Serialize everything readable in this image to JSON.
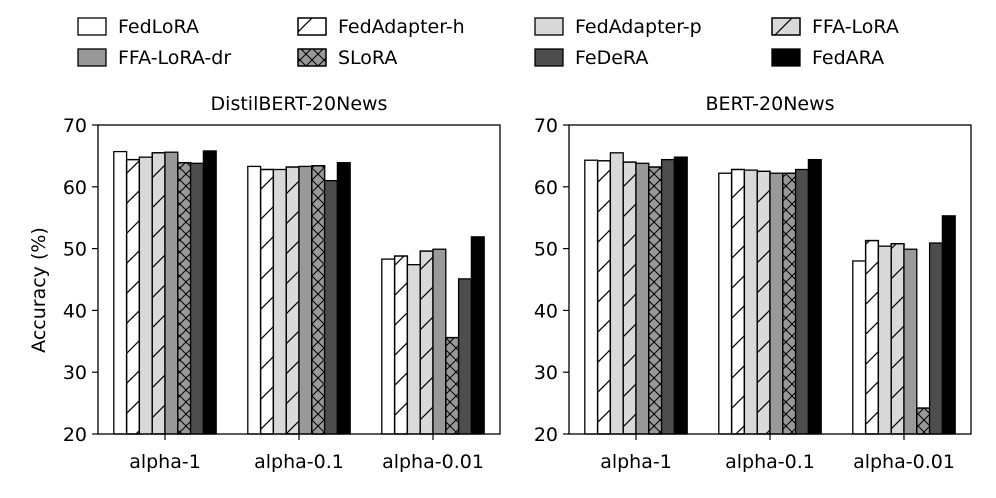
{
  "legend": [
    {
      "name": "FedLoRA",
      "fill": "#ffffff",
      "hatch": "none"
    },
    {
      "name": "FedAdapter-h",
      "fill": "#ffffff",
      "hatch": "diag"
    },
    {
      "name": "FedAdapter-p",
      "fill": "#d9d9d9",
      "hatch": "none"
    },
    {
      "name": "FFA-LoRA",
      "fill": "#d9d9d9",
      "hatch": "diag"
    },
    {
      "name": "FFA-LoRA-dr",
      "fill": "#999999",
      "hatch": "none"
    },
    {
      "name": "SLoRA",
      "fill": "#999999",
      "hatch": "cross"
    },
    {
      "name": "FeDeRA",
      "fill": "#4d4d4d",
      "hatch": "none"
    },
    {
      "name": "FedARA",
      "fill": "#000000",
      "hatch": "none"
    }
  ],
  "chart_data": [
    {
      "type": "bar",
      "title": "DistilBERT-20News",
      "ylabel": "Accuracy (%)",
      "xlabel": "",
      "ylim": [
        20,
        70
      ],
      "yticks": [
        20,
        30,
        40,
        50,
        60,
        70
      ],
      "categories": [
        "alpha-1",
        "alpha-0.1",
        "alpha-0.01"
      ],
      "series": [
        {
          "name": "FedLoRA",
          "values": [
            65.7,
            63.3,
            48.3
          ]
        },
        {
          "name": "FedAdapter-h",
          "values": [
            64.4,
            62.8,
            48.8
          ]
        },
        {
          "name": "FedAdapter-p",
          "values": [
            64.8,
            62.8,
            47.4
          ]
        },
        {
          "name": "FFA-LoRA",
          "values": [
            65.5,
            63.2,
            49.6
          ]
        },
        {
          "name": "FFA-LoRA-dr",
          "values": [
            65.6,
            63.3,
            49.9
          ]
        },
        {
          "name": "SLoRA",
          "values": [
            63.9,
            63.4,
            35.6
          ]
        },
        {
          "name": "FeDeRA",
          "values": [
            63.8,
            61.0,
            45.1
          ]
        },
        {
          "name": "FedARA",
          "values": [
            65.8,
            63.9,
            51.9
          ]
        }
      ]
    },
    {
      "type": "bar",
      "title": "BERT-20News",
      "ylabel": "",
      "xlabel": "",
      "ylim": [
        20,
        70
      ],
      "yticks": [
        20,
        30,
        40,
        50,
        60,
        70
      ],
      "categories": [
        "alpha-1",
        "alpha-0.1",
        "alpha-0.01"
      ],
      "series": [
        {
          "name": "FedLoRA",
          "values": [
            64.3,
            62.2,
            48.0
          ]
        },
        {
          "name": "FedAdapter-h",
          "values": [
            64.2,
            62.8,
            51.3
          ]
        },
        {
          "name": "FedAdapter-p",
          "values": [
            65.5,
            62.7,
            50.4
          ]
        },
        {
          "name": "FFA-LoRA",
          "values": [
            64.0,
            62.5,
            50.8
          ]
        },
        {
          "name": "FFA-LoRA-dr",
          "values": [
            63.8,
            62.2,
            49.9
          ]
        },
        {
          "name": "SLoRA",
          "values": [
            63.2,
            62.2,
            24.2
          ]
        },
        {
          "name": "FeDeRA",
          "values": [
            64.4,
            62.8,
            50.9
          ]
        },
        {
          "name": "FedARA",
          "values": [
            64.8,
            64.4,
            55.3
          ]
        }
      ]
    }
  ]
}
